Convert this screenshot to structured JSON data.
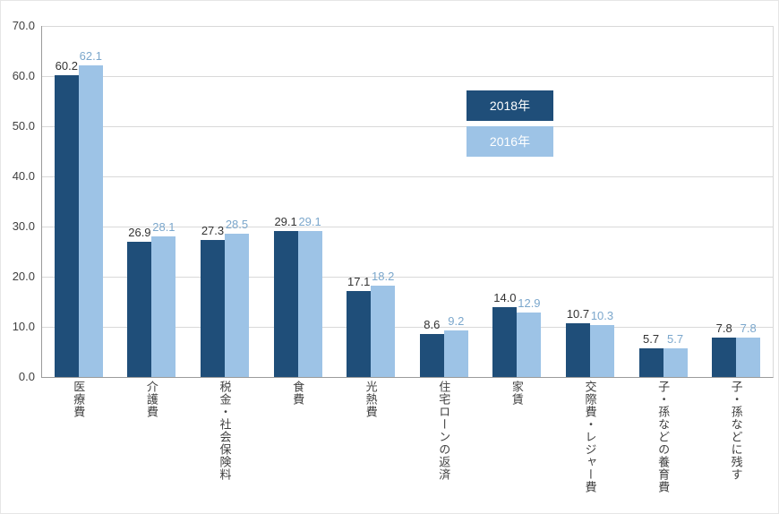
{
  "chart_data": {
    "type": "bar",
    "title": "",
    "xlabel": "",
    "ylabel": "",
    "categories": [
      "医療費",
      "介護費",
      "税金・社会保険料",
      "食費",
      "光熱費",
      "住宅ローンの返済",
      "家賃",
      "交際費・レジャー費",
      "子・孫などの養育費",
      "子・孫などに残す"
    ],
    "series": [
      {
        "name": "2018年",
        "color": "#1F4E79",
        "label_color": "#333333",
        "values": [
          60.2,
          26.9,
          27.3,
          29.1,
          17.1,
          8.6,
          14.0,
          10.7,
          5.7,
          7.8
        ]
      },
      {
        "name": "2016年",
        "color": "#9DC3E6",
        "label_color": "#7BA7CC",
        "values": [
          62.1,
          28.1,
          28.5,
          29.1,
          18.2,
          9.2,
          12.9,
          10.3,
          5.7,
          7.8
        ]
      }
    ],
    "ylim": [
      0,
      70
    ],
    "ytick_step": 10,
    "yticks": [
      "0.0",
      "10.0",
      "20.0",
      "30.0",
      "40.0",
      "50.0",
      "60.0",
      "70.0"
    ],
    "value_label_decimals": 1,
    "grid": true,
    "legend_position": "inside-upper-middle"
  },
  "legend": {
    "items": [
      {
        "label": "2018年",
        "color": "#1F4E79"
      },
      {
        "label": "2016年",
        "color": "#9DC3E6"
      }
    ]
  }
}
